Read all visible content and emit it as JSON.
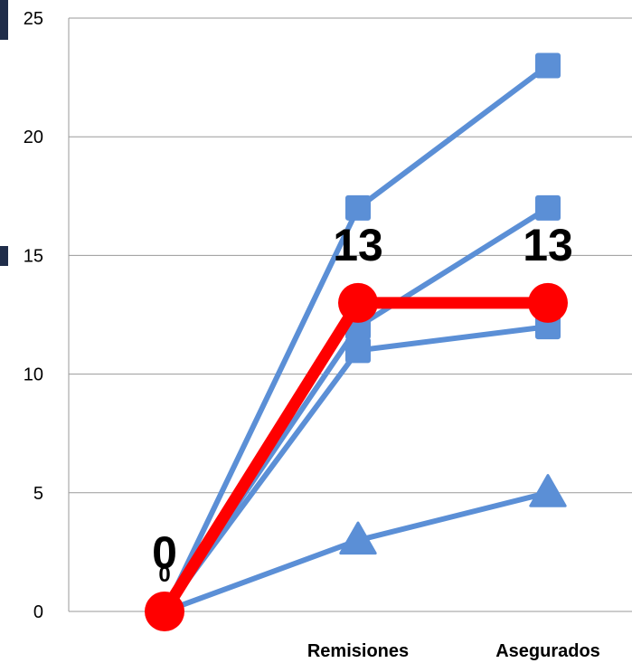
{
  "chart_data": {
    "type": "line",
    "categories": [
      "",
      "Remisiones",
      "Asegurados"
    ],
    "ylim": [
      0,
      25
    ],
    "yticks": [
      0,
      5,
      10,
      15,
      20,
      25
    ],
    "grid": true,
    "legend": "none",
    "series": [
      {
        "values": [
          0,
          17,
          23
        ],
        "marker": "square",
        "color": "#5b8fd6"
      },
      {
        "values": [
          0,
          12,
          17
        ],
        "marker": "square",
        "color": "#5b8fd6"
      },
      {
        "values": [
          0,
          11,
          12
        ],
        "marker": "square",
        "color": "#5b8fd6"
      },
      {
        "values": [
          0,
          3,
          5
        ],
        "marker": "triangle",
        "color": "#5b8fd6"
      },
      {
        "values": [
          0,
          13,
          13
        ],
        "marker": "circle",
        "color": "#ff0000",
        "highlight": true
      }
    ],
    "data_labels": [
      {
        "category_index": 0,
        "text": "0",
        "size": "large"
      },
      {
        "category_index": 0,
        "text": "0",
        "size": "small"
      },
      {
        "category_index": 1,
        "text": "13",
        "size": "large"
      },
      {
        "category_index": 2,
        "text": "13",
        "size": "large"
      }
    ]
  }
}
